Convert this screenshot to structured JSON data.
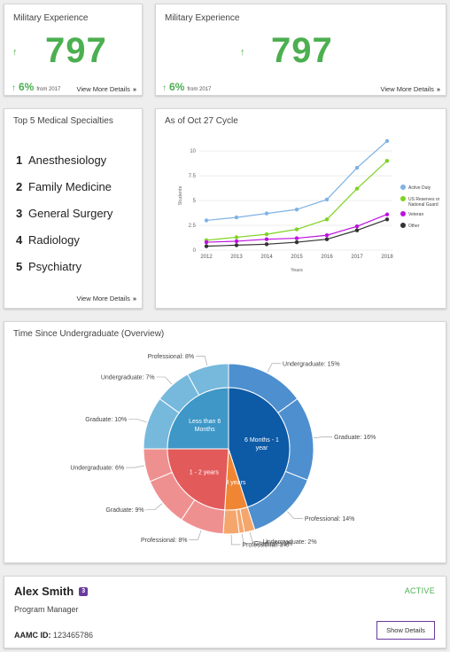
{
  "metric_cards": [
    {
      "title": "Military Experience",
      "value": "797",
      "change_arrow": "↑",
      "change_pct": "6%",
      "change_from": "from 2017",
      "link": "View More Details",
      "link_chevron": "»"
    },
    {
      "title": "Military Experience",
      "value": "797",
      "change_arrow": "↑",
      "change_pct": "6%",
      "change_from": "from 2017",
      "link": "View More Details",
      "link_chevron": "»"
    }
  ],
  "specialties": {
    "title": "Top 5 Medical Specialties",
    "items": [
      {
        "rank": "1",
        "name": "Anesthesiology"
      },
      {
        "rank": "2",
        "name": "Family Medicine"
      },
      {
        "rank": "3",
        "name": "General Surgery"
      },
      {
        "rank": "4",
        "name": "Radiology"
      },
      {
        "rank": "5",
        "name": "Psychiatry"
      }
    ],
    "link": "View More Details",
    "link_chevron": "»"
  },
  "line_chart_title": "As of Oct 27 Cycle",
  "sunburst_title": "Time Since Undergraduate (Overview)",
  "chart_data": [
    {
      "type": "line",
      "title": "As of Oct 27 Cycle",
      "xlabel": "Years",
      "ylabel": "Students",
      "x": [
        "2012",
        "2013",
        "2014",
        "2015",
        "2016",
        "2017",
        "2018"
      ],
      "ylim": [
        0,
        11
      ],
      "yticks": [
        "0",
        "2.5",
        "5",
        "7.5",
        "10"
      ],
      "ytick_values": [
        0,
        2.5,
        5,
        7.5,
        10
      ],
      "grid": true,
      "legend_position": "right",
      "series": [
        {
          "name": "Active Duty",
          "color": "#7fb2e5",
          "values": [
            3.0,
            3.3,
            3.7,
            4.1,
            5.1,
            8.3,
            11.0
          ]
        },
        {
          "name": "US Reserves or National Guard",
          "color": "#7ed321",
          "values": [
            1.0,
            1.3,
            1.6,
            2.1,
            3.1,
            6.2,
            9.0
          ]
        },
        {
          "name": "Veteran",
          "color": "#bd10e0",
          "values": [
            0.8,
            0.9,
            1.1,
            1.2,
            1.5,
            2.4,
            3.6
          ]
        },
        {
          "name": "Other",
          "color": "#333333",
          "values": [
            0.4,
            0.5,
            0.6,
            0.8,
            1.1,
            2.0,
            3.1
          ]
        }
      ]
    },
    {
      "type": "pie",
      "title": "Time Since Undergraduate (Overview)",
      "inner": [
        {
          "name": "Less than 6 Months",
          "color": "#3e97c7",
          "value": 25
        },
        {
          "name": "6 Months - 1 year",
          "color": "#0d5aa7",
          "value": 45
        },
        {
          "name": "2-3 years",
          "color": "#f08634",
          "value": 6
        },
        {
          "name": "1 - 2 years",
          "color": "#e35a5a",
          "value": 24
        }
      ],
      "outer": [
        {
          "label": "Undergraduate: 15%",
          "value": 15,
          "parent": 1,
          "color": "#4d8fcf"
        },
        {
          "label": "Graduate: 16%",
          "value": 16,
          "parent": 1,
          "color": "#4d8fcf"
        },
        {
          "label": "Professional: 14%",
          "value": 14,
          "parent": 1,
          "color": "#4d8fcf"
        },
        {
          "label": "Undergraduate: 2%",
          "value": 2,
          "parent": 2,
          "color": "#f5a66c"
        },
        {
          "label": "Graduate: 1%",
          "value": 1,
          "parent": 2,
          "color": "#f5a66c"
        },
        {
          "label": "Professional: 3%",
          "value": 3,
          "parent": 2,
          "color": "#f5a66c"
        },
        {
          "label": "Professional: 8%",
          "value": 8,
          "parent": 3,
          "color": "#ef9090"
        },
        {
          "label": "Graduate: 9%",
          "value": 9,
          "parent": 3,
          "color": "#ef9090"
        },
        {
          "label": "Undergraduate: 6%",
          "value": 6,
          "parent": 3,
          "color": "#ef9090"
        },
        {
          "label": "Graduate: 10%",
          "value": 10,
          "parent": 0,
          "color": "#76b9dc"
        },
        {
          "label": "Undergraduate: 7%",
          "value": 7,
          "parent": 0,
          "color": "#76b9dc"
        },
        {
          "label": "Professional: 8%",
          "value": 8,
          "parent": 0,
          "color": "#76b9dc"
        }
      ]
    }
  ],
  "profile": {
    "name": "Alex Smith",
    "badge": "3",
    "role": "Program Manager",
    "id_label": "AAMC ID:",
    "id_value": "123465786",
    "status": "ACTIVE",
    "button": "Show Details",
    "accent": "#6a3a9c"
  },
  "colors": {
    "positive": "#4caf50"
  },
  "icons": {
    "change_arrow": "arrow-up-icon",
    "link_chevron": "double-chevron-right-icon"
  }
}
